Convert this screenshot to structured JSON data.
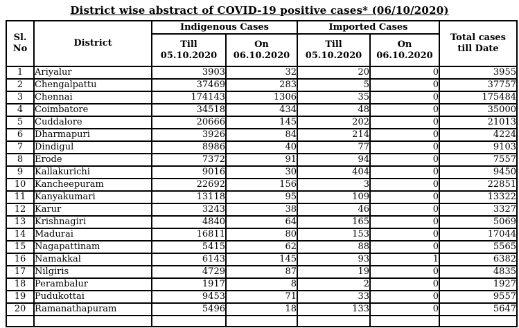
{
  "title": "District wise abstract of COVID-19 positive cases* (06/10/2020)",
  "table": {
    "headers": {
      "sl_no_line1": "Sl.",
      "sl_no_line2": "No",
      "district": "District",
      "indigenous_group": "Indigenous Cases",
      "imported_group": "Imported Cases",
      "till_label": "Till",
      "till_date": "05.10.2020",
      "on_label": "On",
      "on_date": "06.10.2020",
      "total_line1": "Total cases",
      "total_line2": "till Date"
    },
    "rows": [
      [
        "1",
        "Ariyalur",
        "3903",
        "32",
        "20",
        "0",
        "3955"
      ],
      [
        "2",
        "Chengalpattu",
        "37469",
        "283",
        "5",
        "0",
        "37757"
      ],
      [
        "3",
        "Chennai",
        "174143",
        "1306",
        "35",
        "0",
        "175484"
      ],
      [
        "4",
        "Coimbatore",
        "34518",
        "434",
        "48",
        "0",
        "35000"
      ],
      [
        "5",
        "Cuddalore",
        "20666",
        "145",
        "202",
        "0",
        "21013"
      ],
      [
        "6",
        "Dharmapuri",
        "3926",
        "84",
        "214",
        "0",
        "4224"
      ],
      [
        "7",
        "Dindigul",
        "8986",
        "40",
        "77",
        "0",
        "9103"
      ],
      [
        "8",
        "Erode",
        "7372",
        "91",
        "94",
        "0",
        "7557"
      ],
      [
        "9",
        "Kallakurichi",
        "9016",
        "30",
        "404",
        "0",
        "9450"
      ],
      [
        "10",
        "Kancheepuram",
        "22692",
        "156",
        "3",
        "0",
        "22851"
      ],
      [
        "11",
        "Kanyakumari",
        "13118",
        "95",
        "109",
        "0",
        "13322"
      ],
      [
        "12",
        "Karur",
        "3243",
        "38",
        "46",
        "0",
        "3327"
      ],
      [
        "13",
        "Krishnagiri",
        "4840",
        "64",
        "165",
        "0",
        "5069"
      ],
      [
        "14",
        "Madurai",
        "16811",
        "80",
        "153",
        "0",
        "17044"
      ],
      [
        "15",
        "Nagapattinam",
        "5415",
        "62",
        "88",
        "0",
        "5565"
      ],
      [
        "16",
        "Namakkal",
        "6143",
        "145",
        "93",
        "1",
        "6382"
      ],
      [
        "17",
        "Nilgiris",
        "4729",
        "87",
        "19",
        "0",
        "4835"
      ],
      [
        "18",
        "Perambalur",
        "1917",
        "8",
        "2",
        "0",
        "1927"
      ],
      [
        "19",
        "Pudukottai",
        "9453",
        "71",
        "33",
        "0",
        "9557"
      ],
      [
        "20",
        "Ramanathapuram",
        "5496",
        "18",
        "133",
        "0",
        "5647"
      ]
    ]
  }
}
